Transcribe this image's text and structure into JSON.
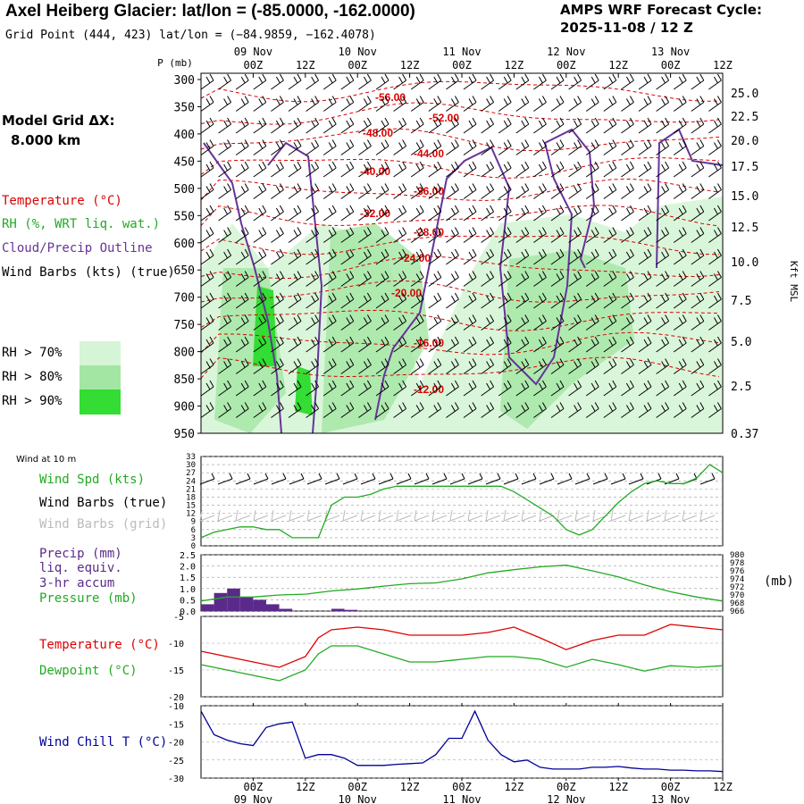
{
  "header": {
    "title": "Axel Heiberg Glacier:  lat/lon = (-85.0000, -162.0000)",
    "subtitle": "Grid Point (444, 423) lat/lon = (−84.9859, −162.4078)",
    "cycle_label": "AMPS WRF Forecast Cycle:",
    "cycle_value": "2025-11-08 / 12  Z"
  },
  "model_grid": {
    "label": "Model Grid ΔX:",
    "value": "8.000 km"
  },
  "time_axis": {
    "hour_ticks": [
      "00Z",
      "12Z",
      "00Z",
      "12Z",
      "00Z",
      "12Z",
      "00Z",
      "12Z",
      "00Z",
      "12Z"
    ],
    "date_ticks": [
      "09 Nov",
      "10 Nov",
      "11 Nov",
      "12 Nov",
      "13 Nov"
    ]
  },
  "legend": {
    "temperature": "Temperature (°C)",
    "rh": "RH (%, WRT liq. wat.)",
    "cloud": "Cloud/Precip Outline",
    "wind_barbs": "Wind Barbs (kts) (true)",
    "rh70": "RH > 70%",
    "rh80": "RH > 80%",
    "rh90": "RH > 90%",
    "wind10m": "Wind at 10 m",
    "wind_spd": "Wind Spd (kts)",
    "barbs_true": "Wind Barbs (true)",
    "barbs_grid": "Wind Barbs (grid)",
    "precip_1": "Precip (mm)",
    "precip_2": "liq. equiv.",
    "precip_3": "3-hr accum",
    "pressure": "Pressure (mb)",
    "pressure_unit": "(mb)",
    "temp2": "Temperature (°C)",
    "dewpoint": "Dewpoint (°C)",
    "windchill": "Wind Chill T (°C)"
  },
  "colors": {
    "temperature": "#dd0000",
    "rh": "#22aa22",
    "cloud": "#663399",
    "windchill": "#000099",
    "precip": "#5a2a8a",
    "rh70": "#d6f5d6",
    "rh80": "#a3e6a3",
    "rh90": "#33dd33"
  },
  "chart_data": [
    {
      "type": "heatmap",
      "name_in_image": "vertical cross-section",
      "y_left_label": "P (mb)",
      "y_right_label": "Kft MSL",
      "pressure_levels": [
        300,
        350,
        400,
        450,
        500,
        550,
        600,
        650,
        700,
        750,
        800,
        850,
        900,
        950
      ],
      "height_kft_ticks": [
        "25.0",
        "22.5",
        "20.0",
        "17.5",
        "15.0",
        "12.5",
        "10.0",
        "7.5",
        "5.0",
        "2.5",
        "0.37"
      ],
      "isotherm_labels": [
        "-56.00",
        "-52.00",
        "-48.00",
        "-44.00",
        "-40.00",
        "-36.00",
        "-32.00",
        "-28.00",
        "-24.00",
        "-20.00",
        "-16.00",
        "-12.00"
      ]
    },
    {
      "type": "line",
      "name_in_image": "wind speed",
      "ylim": [
        0,
        33
      ],
      "y_ticks": [
        0,
        3,
        6,
        9,
        12,
        15,
        18,
        21,
        24,
        27,
        30,
        33
      ],
      "x_hours": [
        0,
        3,
        6,
        9,
        12,
        15,
        18,
        21,
        24,
        27,
        30,
        33,
        36,
        39,
        42,
        45,
        48,
        51,
        54,
        57,
        60,
        63,
        66,
        69,
        72,
        75,
        78,
        81,
        84,
        87,
        90,
        93,
        96,
        99,
        102,
        105,
        108,
        111,
        114,
        117,
        120
      ],
      "series": [
        {
          "name": "Wind Spd (kts)",
          "values": [
            3,
            5,
            6,
            7,
            7,
            6,
            6,
            3,
            3,
            3,
            15,
            18,
            18,
            19,
            21,
            22,
            22,
            22,
            22,
            22,
            22,
            22,
            22,
            22,
            20,
            17,
            14,
            11,
            6,
            4,
            6,
            11,
            16,
            20,
            23,
            24,
            23,
            23,
            25,
            30,
            27
          ]
        }
      ]
    },
    {
      "type": "bar",
      "name_in_image": "precip and pressure",
      "ylim_left": [
        0,
        2.5
      ],
      "y_ticks_left": [
        "0.0",
        "0.5",
        "1.0",
        "1.5",
        "2.0",
        "2.5"
      ],
      "ylim_right": [
        966,
        980
      ],
      "y_ticks_right": [
        "966",
        "968",
        "970",
        "972",
        "974",
        "976",
        "978",
        "980"
      ],
      "precip_x_hours": [
        0,
        3,
        6,
        9,
        12,
        15,
        18,
        30,
        33
      ],
      "precip_values": [
        0.3,
        0.8,
        1.0,
        0.6,
        0.5,
        0.3,
        0.1,
        0.1,
        0.05
      ],
      "pressure_x_hours": [
        0,
        6,
        12,
        18,
        24,
        30,
        36,
        42,
        48,
        54,
        60,
        66,
        72,
        78,
        84,
        90,
        96,
        102,
        108,
        114,
        120
      ],
      "series": [
        {
          "name": "Pressure (mb)",
          "values": [
            968.5,
            969.5,
            969.5,
            970.0,
            970.2,
            971.0,
            971.5,
            972.2,
            972.8,
            973.0,
            974.0,
            975.5,
            976.3,
            977.0,
            977.4,
            976.0,
            974.5,
            972.5,
            970.8,
            969.5,
            968.5
          ]
        }
      ]
    },
    {
      "type": "line",
      "name_in_image": "temperature and dewpoint",
      "ylim": [
        -20,
        -5
      ],
      "y_ticks": [
        -20,
        -15,
        -10,
        -5
      ],
      "x_hours": [
        0,
        6,
        12,
        18,
        24,
        27,
        30,
        36,
        42,
        48,
        54,
        60,
        66,
        72,
        78,
        84,
        90,
        96,
        102,
        108,
        114,
        120
      ],
      "series": [
        {
          "name": "Temperature (°C)",
          "values": [
            -11.5,
            -12.5,
            -13.5,
            -14.5,
            -12.5,
            -9,
            -7.5,
            -7,
            -7.5,
            -8.5,
            -8.5,
            -8.5,
            -8,
            -7,
            -9,
            -11.2,
            -9.5,
            -8.5,
            -8.5,
            -6.5,
            -7,
            -7.5
          ]
        },
        {
          "name": "Dewpoint (°C)",
          "values": [
            -14,
            -15,
            -16,
            -17,
            -15,
            -12,
            -10.5,
            -10.5,
            -12,
            -13.5,
            -13.5,
            -13,
            -12.5,
            -12.5,
            -13,
            -14.5,
            -13,
            -14,
            -15.2,
            -14.2,
            -14.5,
            -14.2
          ]
        }
      ]
    },
    {
      "type": "line",
      "name_in_image": "wind chill",
      "ylim": [
        -30,
        -10
      ],
      "y_ticks": [
        -30,
        -25,
        -20,
        -15,
        -10
      ],
      "x_hours": [
        0,
        3,
        6,
        9,
        12,
        15,
        18,
        21,
        24,
        27,
        30,
        33,
        36,
        39,
        42,
        45,
        48,
        51,
        54,
        57,
        60,
        63,
        66,
        69,
        72,
        75,
        78,
        81,
        84,
        87,
        90,
        93,
        96,
        99,
        102,
        105,
        108,
        111,
        114,
        117,
        120
      ],
      "series": [
        {
          "name": "Wind Chill T (°C)",
          "values": [
            -11.5,
            -18,
            -19.5,
            -20.5,
            -21,
            -16,
            -15,
            -14.5,
            -24.5,
            -23.5,
            -23.5,
            -24.5,
            -26.5,
            -26.5,
            -26.5,
            -26.2,
            -26,
            -25.8,
            -23.5,
            -19,
            -19,
            -11.5,
            -19.5,
            -23.5,
            -25.5,
            -25,
            -27,
            -27.5,
            -27.5,
            -27.5,
            -27,
            -27,
            -26.8,
            -27.2,
            -27.5,
            -27.5,
            -27.8,
            -27.8,
            -28,
            -28,
            -28.2
          ]
        }
      ]
    }
  ]
}
